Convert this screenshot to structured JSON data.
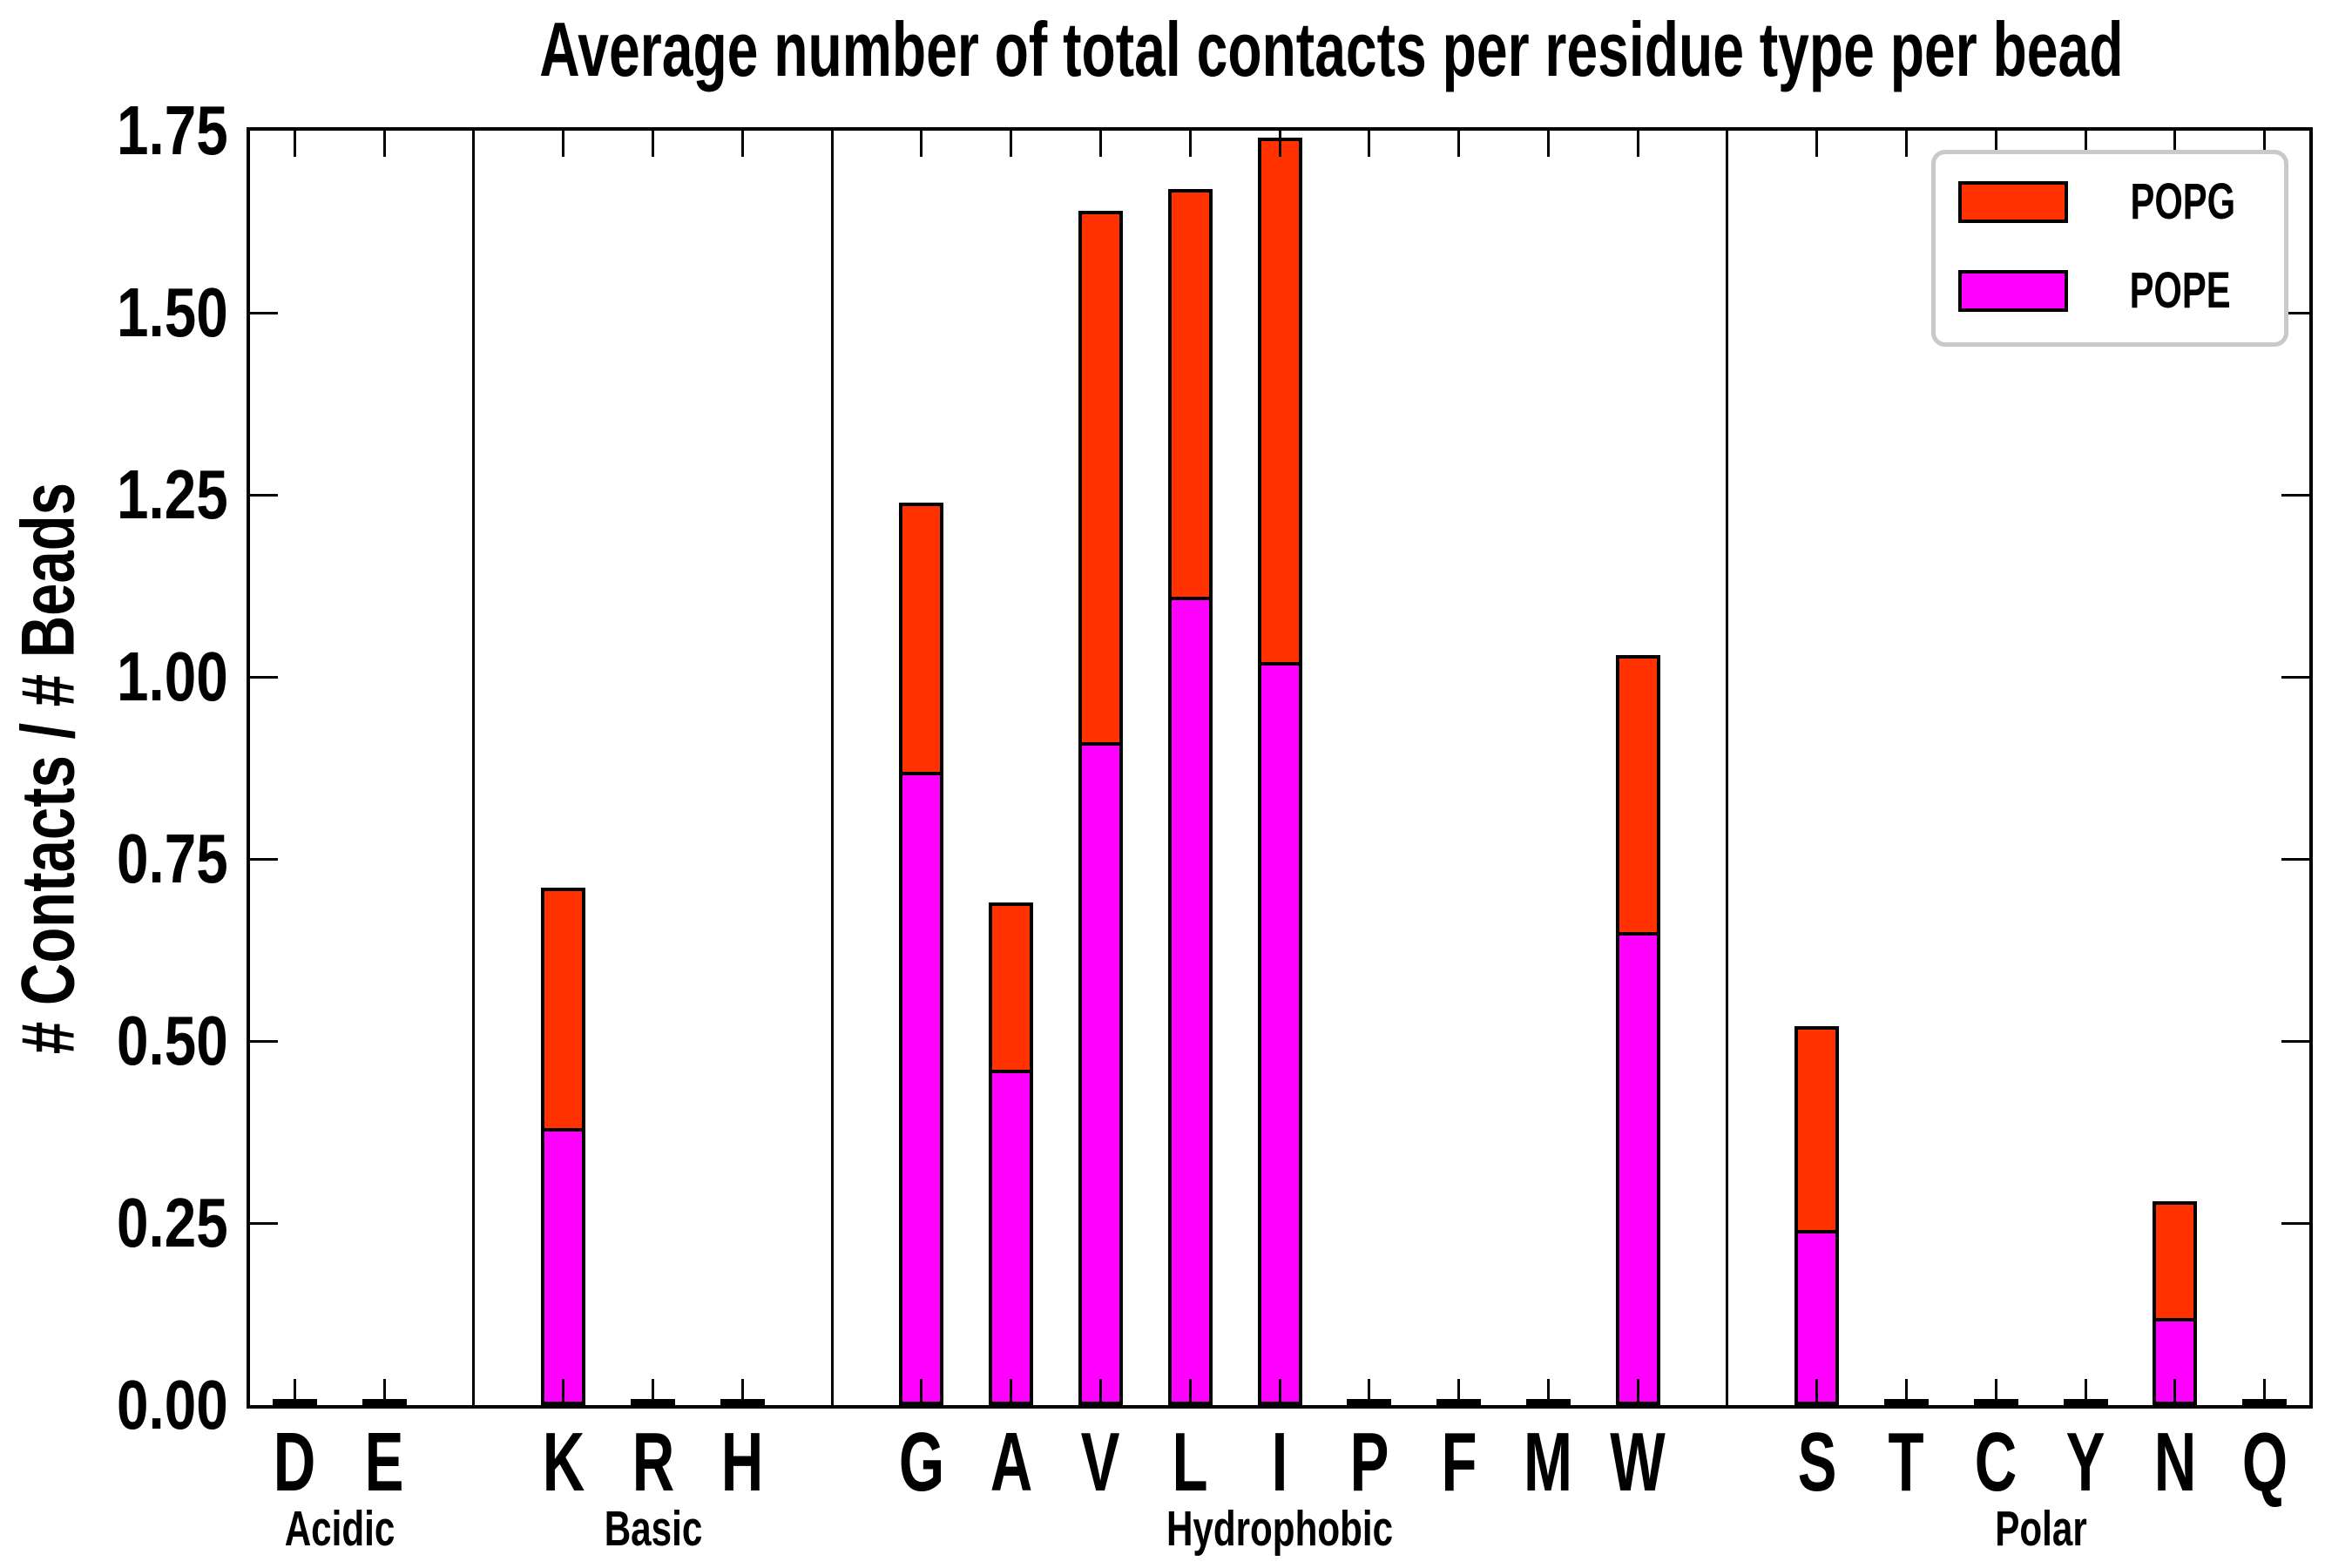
{
  "title": "Average number of total contacts per residue type per bead",
  "y_axis": {
    "label": "# Contacts / # Beads",
    "tick_labels": [
      "0.00",
      "0.25",
      "0.50",
      "0.75",
      "1.00",
      "1.25",
      "1.50",
      "1.75"
    ]
  },
  "legend": {
    "items": [
      {
        "label": "POPG",
        "color": "#ff3200"
      },
      {
        "label": "POPE",
        "color": "#ff00ff"
      }
    ]
  },
  "colors": {
    "popg_red": "#ff3200",
    "pope_magenta": "#ff00ff",
    "bar_edge": "#000000",
    "axis": "#000000",
    "legend_border": "#c9c9c9"
  },
  "chart_data": {
    "type": "bar",
    "stacked": true,
    "title": "Average number of total contacts per residue type per bead",
    "xlabel": "",
    "ylabel": "# Contacts / # Beads",
    "ylim": [
      0,
      1.75
    ],
    "ytick_step": 0.25,
    "grid": false,
    "legend_position": "upper right",
    "bar_width_fraction": 0.5,
    "groups": [
      {
        "label": "Acidic",
        "residues": [
          "D",
          "E"
        ]
      },
      {
        "label": "Basic",
        "residues": [
          "K",
          "R",
          "H"
        ]
      },
      {
        "label": "Hydrophobic",
        "residues": [
          "G",
          "A",
          "V",
          "L",
          "I",
          "P",
          "F",
          "M",
          "W"
        ]
      },
      {
        "label": "Polar",
        "residues": [
          "S",
          "T",
          "C",
          "Y",
          "N",
          "Q"
        ]
      }
    ],
    "categories": [
      "D",
      "E",
      "K",
      "R",
      "H",
      "G",
      "A",
      "V",
      "L",
      "I",
      "P",
      "F",
      "M",
      "W",
      "S",
      "T",
      "C",
      "Y",
      "N",
      "Q"
    ],
    "series": [
      {
        "name": "POPE",
        "color": "#ff00ff",
        "values": [
          0.002,
          0.002,
          0.38,
          0.002,
          0.002,
          0.87,
          0.46,
          0.91,
          1.11,
          1.02,
          0.002,
          0.002,
          0.002,
          0.65,
          0.24,
          0.002,
          0.002,
          0.002,
          0.12,
          0.002
        ]
      },
      {
        "name": "POPG",
        "color": "#ff3200",
        "values": [
          0.002,
          0.002,
          0.33,
          0.002,
          0.002,
          0.37,
          0.23,
          0.73,
          0.56,
          0.72,
          0.002,
          0.002,
          0.002,
          0.38,
          0.28,
          0.002,
          0.002,
          0.002,
          0.16,
          0.002
        ]
      }
    ],
    "totals_note": "stacked totals: K 0.71, G 1.24, A 0.69, V 1.64, L 1.67, I 1.74, W 1.03, S 0.52, N 0.28; all other residues ~0"
  }
}
